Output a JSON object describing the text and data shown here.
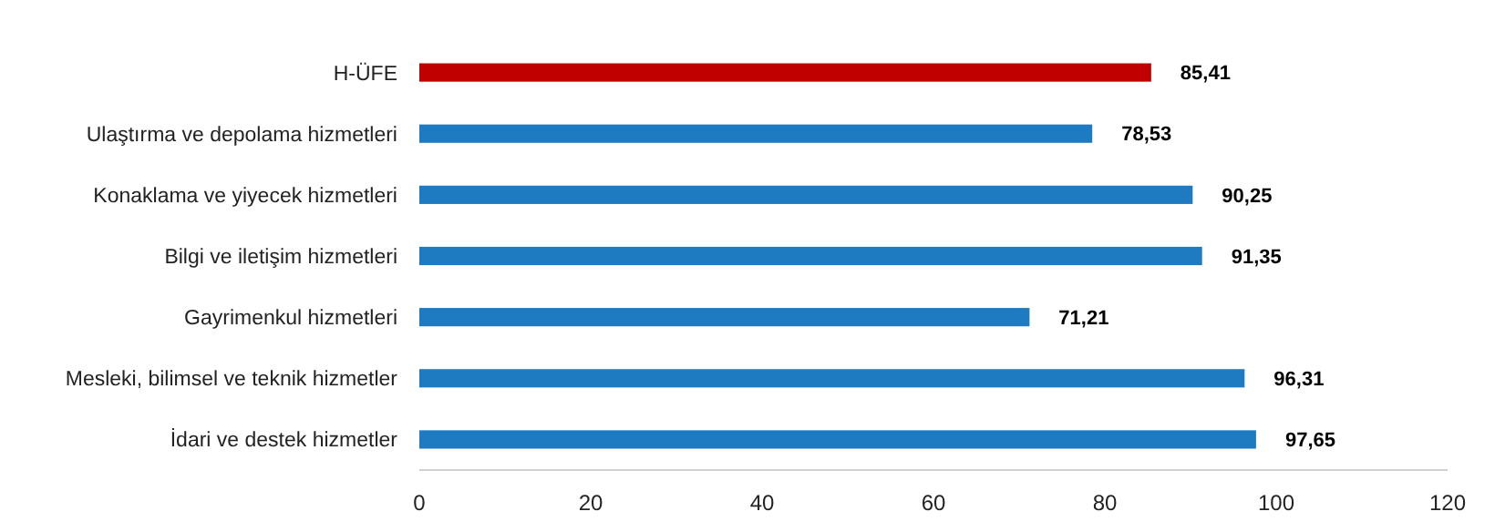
{
  "chart_data": {
    "type": "bar",
    "orientation": "horizontal",
    "categories": [
      "H-ÜFE",
      "Ulaştırma ve depolama hizmetleri",
      "Konaklama ve yiyecek hizmetleri",
      "Bilgi ve iletişim hizmetleri",
      "Gayrimenkul hizmetleri",
      "Mesleki, bilimsel ve teknik hizmetler",
      "İdari ve destek hizmetler"
    ],
    "values": [
      85.41,
      78.53,
      90.25,
      91.35,
      71.21,
      96.31,
      97.65
    ],
    "value_labels": [
      "85,41",
      "78,53",
      "90,25",
      "91,35",
      "71,21",
      "96,31",
      "97,65"
    ],
    "colors": [
      "#c00000",
      "#1f7bc1",
      "#1f7bc1",
      "#1f7bc1",
      "#1f7bc1",
      "#1f7bc1",
      "#1f7bc1"
    ],
    "xlim": [
      0,
      120
    ],
    "xticks": [
      0,
      20,
      40,
      60,
      80,
      100,
      120
    ]
  }
}
